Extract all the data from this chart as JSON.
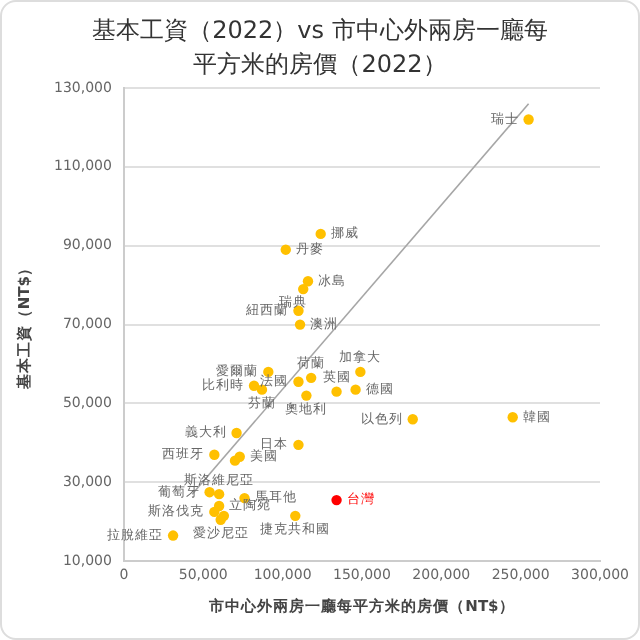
{
  "chart_data": {
    "type": "scatter",
    "title": "基本工資（2022）vs 市中心外兩房一廳每平方米的房價（2022）",
    "xlabel": "市中心外兩房一廳每平方米的房價（NT$）",
    "ylabel": "基本工資（NT$）",
    "xlim": [
      0,
      300000
    ],
    "xticks": [
      0,
      {
        "value": 50000,
        "label": "50,000"
      },
      {
        "value": 100000,
        "label": "100,000"
      },
      {
        "value": 150000,
        "label": "150,000"
      },
      {
        "value": 200000,
        "label": "200,000"
      },
      {
        "value": 250000,
        "label": "250,000"
      },
      {
        "value": 300000,
        "label": "300,000"
      }
    ],
    "ylim": [
      10000,
      130000
    ],
    "yticks": [
      {
        "value": 10000,
        "label": "10,000"
      },
      {
        "value": 30000,
        "label": "30,000"
      },
      {
        "value": 50000,
        "label": "50,000"
      },
      {
        "value": 70000,
        "label": "70,000"
      },
      {
        "value": 90000,
        "label": "90,000"
      },
      {
        "value": 110000,
        "label": "110,000"
      },
      {
        "value": 130000,
        "label": "130,000"
      }
    ],
    "grid": "y",
    "legend": false,
    "series": [
      {
        "marker": "circle",
        "color": "#ffc000",
        "x": [
          255000,
          124000,
          102000,
          116000,
          113000,
          110000,
          111000,
          91000,
          118000,
          110000,
          82000,
          87000,
          115000,
          134000,
          146000,
          149000,
          182000,
          245000,
          134000,
          71000,
          57000,
          110000,
          73000,
          60000,
          54000,
          76000,
          60000,
          57000,
          61000,
          108000,
          31000,
          70000,
          63000
        ],
        "values": [
          122000,
          93000,
          89000,
          81000,
          79000,
          73500,
          70000,
          58000,
          56500,
          55500,
          54500,
          53500,
          52000,
          53000,
          53500,
          58000,
          46000,
          46500,
          25500,
          42500,
          37000,
          39500,
          36500,
          27000,
          27500,
          26000,
          24000,
          22500,
          20500,
          21500,
          16500,
          35500,
          21500
        ],
        "colors": [
          "#ffc000",
          "#ffc000",
          "#ffc000",
          "#ffc000",
          "#ffc000",
          "#ffc000",
          "#ffc000",
          "#ffc000",
          "#ffc000",
          "#ffc000",
          "#ffc000",
          "#ffc000",
          "#ffc000",
          "#ffc000",
          "#ffc000",
          "#ffc000",
          "#ffc000",
          "#ffc000",
          "#ff0000",
          "#ffc000",
          "#ffc000",
          "#ffc000",
          "#ffc000",
          "#ffc000",
          "#ffc000",
          "#ffc000",
          "#ffc000",
          "#ffc000",
          "#ffc000",
          "#ffc000",
          "#ffc000",
          "#ffc000",
          "#ffc000"
        ]
      },
      {
        "type": "line",
        "marker": "none",
        "color": "#a6a6a6",
        "x": [
          43000,
          255000
        ],
        "values": [
          27000,
          126000
        ]
      }
    ],
    "annotations": [
      {
        "text": "瑞士",
        "x": 255000,
        "y": 122000
      },
      {
        "text": "挪威",
        "x": 124000,
        "y": 93000
      },
      {
        "text": "丹麥",
        "x": 102000,
        "y": 89000
      },
      {
        "text": "冰島",
        "x": 116000,
        "y": 81000
      },
      {
        "text": "瑞典",
        "x": 113000,
        "y": 79000
      },
      {
        "text": "紐西蘭",
        "x": 110000,
        "y": 73500
      },
      {
        "text": "澳洲",
        "x": 111000,
        "y": 70000
      },
      {
        "text": "愛爾蘭",
        "x": 91000,
        "y": 58000
      },
      {
        "text": "荷蘭",
        "x": 118000,
        "y": 56500
      },
      {
        "text": "法國",
        "x": 110000,
        "y": 55500
      },
      {
        "text": "比利時",
        "x": 82000,
        "y": 54500
      },
      {
        "text": "芬蘭",
        "x": 87000,
        "y": 53500
      },
      {
        "text": "奧地利",
        "x": 115000,
        "y": 52000
      },
      {
        "text": "英國",
        "x": 134000,
        "y": 53000
      },
      {
        "text": "德國",
        "x": 146000,
        "y": 53500
      },
      {
        "text": "加拿大",
        "x": 149000,
        "y": 58000
      },
      {
        "text": "以色列",
        "x": 182000,
        "y": 46000
      },
      {
        "text": "韓國",
        "x": 245000,
        "y": 46500
      },
      {
        "text": "台灣",
        "x": 134000,
        "y": 25500
      },
      {
        "text": "義大利",
        "x": 71000,
        "y": 42500
      },
      {
        "text": "西班牙",
        "x": 57000,
        "y": 37000
      },
      {
        "text": "日本",
        "x": 110000,
        "y": 39500
      },
      {
        "text": "美國",
        "x": 73000,
        "y": 36500
      },
      {
        "text": "斯洛維尼亞",
        "x": 60000,
        "y": 27000
      },
      {
        "text": "葡萄牙",
        "x": 54000,
        "y": 27500
      },
      {
        "text": "馬耳他",
        "x": 76000,
        "y": 26000
      },
      {
        "text": "立陶宛",
        "x": 60000,
        "y": 24000
      },
      {
        "text": "斯洛伐克",
        "x": 57000,
        "y": 22500
      },
      {
        "text": "愛沙尼亞",
        "x": 61000,
        "y": 20500
      },
      {
        "text": "捷克共和國",
        "x": 108000,
        "y": 21500
      },
      {
        "text": "拉脫維亞",
        "x": 31000,
        "y": 16500
      }
    ]
  }
}
